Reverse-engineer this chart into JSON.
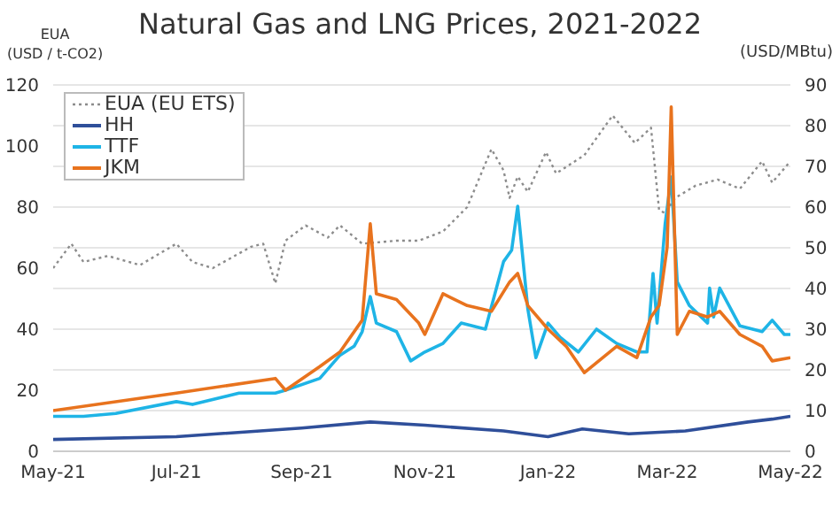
{
  "chart_data": {
    "type": "line",
    "title": "Natural Gas and LNG Prices, 2021-2022",
    "ylabel": "EUA\n(USD / t-CO2)",
    "y2label": "(USD/MBtu)",
    "xlim": [
      "2021-05-01",
      "2022-05-01"
    ],
    "xticks": [
      {
        "value": "2021-05-01",
        "label": "May-21"
      },
      {
        "value": "2021-07-01",
        "label": "Jul-21"
      },
      {
        "value": "2021-09-01",
        "label": "Sep-21"
      },
      {
        "value": "2021-11-01",
        "label": "Nov-21"
      },
      {
        "value": "2022-01-01",
        "label": "Jan-22"
      },
      {
        "value": "2022-03-01",
        "label": "Mar-22"
      },
      {
        "value": "2022-05-01",
        "label": "May-22"
      }
    ],
    "ylim": [
      0,
      120
    ],
    "yticks": [
      0,
      20,
      40,
      60,
      80,
      100,
      120
    ],
    "y2lim": [
      0,
      90
    ],
    "y2ticks": [
      0,
      10,
      20,
      30,
      40,
      50,
      60,
      70,
      80,
      90
    ],
    "grid": "y",
    "legend": "top left",
    "marker": "none",
    "series": [
      {
        "name": "EUA (EU ETS)",
        "color": "#8c8c8c",
        "line_style": "dotted",
        "x": [
          "2021-05-01",
          "2021-05-10",
          "2021-05-16",
          "2021-05-28",
          "2021-06-13",
          "2021-07-01",
          "2021-07-09",
          "2021-07-19",
          "2021-08-07",
          "2021-08-13",
          "2021-08-19",
          "2021-08-24",
          "2021-09-03",
          "2021-09-14",
          "2021-09-20",
          "2021-10-01",
          "2021-10-18",
          "2021-10-29",
          "2021-11-10",
          "2021-11-22",
          "2021-12-04",
          "2021-12-10",
          "2021-12-13",
          "2021-12-17",
          "2021-12-22",
          "2021-12-31",
          "2022-01-05",
          "2022-01-19",
          "2022-02-02",
          "2022-02-13",
          "2022-02-21",
          "2022-02-25",
          "2022-02-28",
          "2022-03-05",
          "2022-03-15",
          "2022-03-26",
          "2022-04-06",
          "2022-04-17",
          "2022-04-22",
          "2022-05-01"
        ],
        "values": [
          60,
          68,
          62,
          64,
          61,
          68,
          62,
          60,
          67,
          68,
          55,
          69,
          74,
          70,
          74,
          68,
          69,
          69,
          72,
          80,
          99,
          92,
          83,
          90,
          85,
          98,
          91,
          97,
          110,
          101,
          106,
          79,
          78,
          83,
          87,
          89,
          86,
          95,
          88,
          95
        ]
      },
      {
        "name": "HH",
        "color": "#2f4f9a",
        "axis": "y2",
        "x": [
          "2021-05-01",
          "2021-07-01",
          "2021-09-01",
          "2021-10-05",
          "2021-11-01",
          "2021-12-10",
          "2022-01-01",
          "2022-01-18",
          "2022-02-10",
          "2022-03-10",
          "2022-04-10",
          "2022-04-22",
          "2022-05-01"
        ],
        "values": [
          2.9,
          3.6,
          5.7,
          7.2,
          6.4,
          5,
          3.6,
          5.5,
          4.3,
          5,
          7.2,
          7.9,
          8.6
        ]
      },
      {
        "name": "TTF",
        "color": "#1eb4e6",
        "axis": "y2",
        "x": [
          "2021-05-01",
          "2021-05-16",
          "2021-06-01",
          "2021-07-01",
          "2021-07-09",
          "2021-08-01",
          "2021-08-19",
          "2021-08-24",
          "2021-09-10",
          "2021-09-20",
          "2021-09-27",
          "2021-10-01",
          "2021-10-05",
          "2021-10-08",
          "2021-10-18",
          "2021-10-25",
          "2021-11-01",
          "2021-11-10",
          "2021-11-19",
          "2021-12-01",
          "2021-12-10",
          "2021-12-14",
          "2021-12-17",
          "2021-12-22",
          "2021-12-26",
          "2022-01-01",
          "2022-01-07",
          "2022-01-16",
          "2022-01-25",
          "2022-02-04",
          "2022-02-14",
          "2022-02-19",
          "2022-02-22",
          "2022-02-24",
          "2022-02-28",
          "2022-03-03",
          "2022-03-06",
          "2022-03-12",
          "2022-03-21",
          "2022-03-22",
          "2022-03-24",
          "2022-03-27",
          "2022-04-06",
          "2022-04-17",
          "2022-04-22",
          "2022-04-28",
          "2022-05-01"
        ],
        "values": [
          8.6,
          8.6,
          9.3,
          12.2,
          11.5,
          14.3,
          14.3,
          15,
          17.9,
          23.6,
          25.8,
          29.4,
          38,
          31.5,
          29.4,
          22.2,
          24.4,
          26.5,
          31.5,
          30,
          46.6,
          49.4,
          60.2,
          35,
          23,
          31.5,
          28,
          24.4,
          30,
          26.5,
          24.4,
          24.4,
          43.7,
          31.5,
          55.9,
          67.4,
          41.6,
          35.8,
          31.5,
          40.1,
          33,
          40.1,
          30.8,
          29.4,
          32.2,
          28.7,
          28.7
        ]
      },
      {
        "name": "JKM",
        "color": "#e8731e",
        "axis": "y2",
        "x": [
          "2021-05-01",
          "2021-07-01",
          "2021-08-19",
          "2021-08-24",
          "2021-09-10",
          "2021-09-20",
          "2021-10-01",
          "2021-10-05",
          "2021-10-08",
          "2021-10-18",
          "2021-10-29",
          "2021-11-01",
          "2021-11-10",
          "2021-11-22",
          "2021-12-04",
          "2021-12-13",
          "2021-12-17",
          "2021-12-22",
          "2022-01-01",
          "2022-01-10",
          "2022-01-19",
          "2022-02-04",
          "2022-02-14",
          "2022-02-21",
          "2022-02-25",
          "2022-03-01",
          "2022-03-03",
          "2022-03-06",
          "2022-03-12",
          "2022-03-21",
          "2022-03-27",
          "2022-04-06",
          "2022-04-17",
          "2022-04-22",
          "2022-05-01"
        ],
        "values": [
          10,
          14.3,
          17.9,
          15,
          20.8,
          24.4,
          32.2,
          55.9,
          38.7,
          37.3,
          31.5,
          28.7,
          38.7,
          35.8,
          34.4,
          41.6,
          43.7,
          35.8,
          30,
          25.8,
          19.3,
          25.8,
          23,
          33,
          35.8,
          50.2,
          84.6,
          28.7,
          34.4,
          33,
          34.4,
          28.7,
          25.8,
          22.2,
          23
        ]
      }
    ]
  }
}
